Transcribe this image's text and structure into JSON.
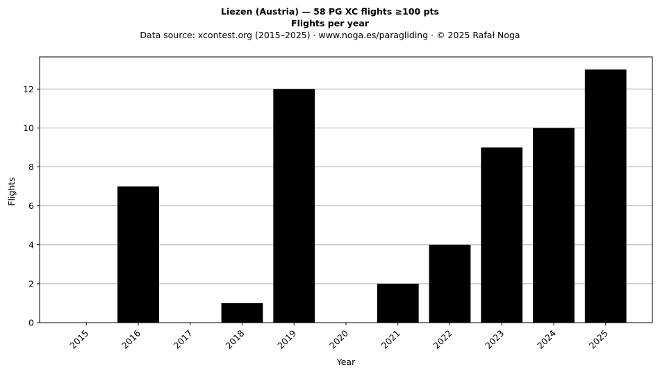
{
  "chart_data": {
    "type": "bar",
    "title": "Liezen (Austria)  —  58 PG XC flights ≥100 pts",
    "subtitle": "Flights per year",
    "source_note": "Data source: xcontest.org (2015–2025)  ·  www.noga.es/paragliding  ·  © 2025 Rafał Noga",
    "xlabel": "Year",
    "ylabel": "Flights",
    "categories": [
      "2015",
      "2016",
      "2017",
      "2018",
      "2019",
      "2020",
      "2021",
      "2022",
      "2023",
      "2024",
      "2025"
    ],
    "values": [
      0,
      7,
      0,
      1,
      12,
      0,
      2,
      4,
      9,
      10,
      13
    ],
    "ylim": [
      0,
      13.65
    ],
    "yticks": [
      0,
      2,
      4,
      6,
      8,
      10,
      12
    ],
    "grid": "horizontal",
    "bar_color": "#000000",
    "grid_color": "#b0b0b0"
  }
}
